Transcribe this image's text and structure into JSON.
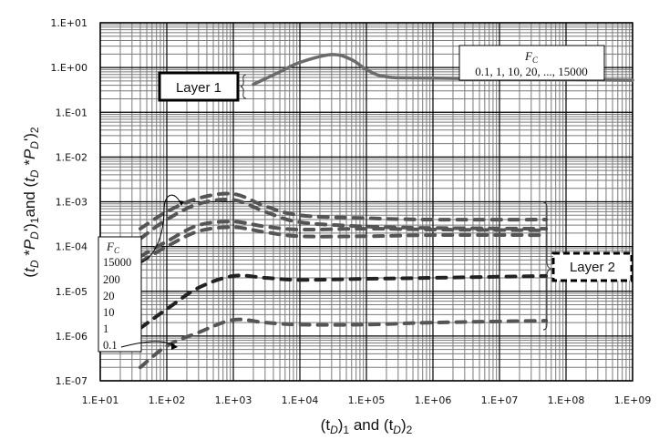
{
  "chart_data": {
    "type": "line",
    "title": "",
    "xlabel": "(t_D)_1 and (t_D)_2",
    "ylabel": "(t_D *P_D')_1 and (t_D *P_D')_2",
    "xscale": "log",
    "yscale": "log",
    "xlim": [
      10,
      1000000000
    ],
    "ylim": [
      1e-07,
      10
    ],
    "grid": true,
    "x_ticks": [
      "1.E+01",
      "1.E+02",
      "1.E+03",
      "1.E+04",
      "1.E+05",
      "1.E+06",
      "1.E+07",
      "1.E+08",
      "1.E+09"
    ],
    "y_ticks": [
      "1.E+01",
      "1.E+00",
      "1.E-01",
      "1.E-02",
      "1.E-03",
      "1.E-04",
      "1.E-05",
      "1.E-06",
      "1.E-07"
    ],
    "series": [
      {
        "name": "Layer 1 (F_C = 0.1, 1, 10, 20, ..., 15000)",
        "style": "solid",
        "color": "#6b6b6b",
        "x": [
          2000,
          5000,
          10000,
          30000,
          60000,
          100000,
          200000,
          1000000,
          1000000000
        ],
        "y": [
          0.42,
          0.8,
          1.3,
          1.95,
          1.5,
          0.9,
          0.62,
          0.58,
          0.52
        ]
      },
      {
        "name": "Layer 2 F_C=15000",
        "style": "dashed",
        "color": "#555555",
        "x": [
          40,
          100,
          300,
          1000,
          3000,
          10000,
          100000,
          1000000,
          50000000
        ],
        "y": [
          0.00025,
          0.0006,
          0.0012,
          0.0015,
          0.0008,
          0.0005,
          0.00043,
          0.0004,
          0.0004
        ]
      },
      {
        "name": "Layer 2 F_C=200",
        "style": "dashed",
        "color": "#555555",
        "x": [
          40,
          100,
          300,
          1000,
          3000,
          10000,
          100000,
          1000000,
          50000000
        ],
        "y": [
          0.00015,
          0.0004,
          0.0009,
          0.0011,
          0.0006,
          0.00035,
          0.00028,
          0.00026,
          0.00025
        ]
      },
      {
        "name": "Layer 2 F_C=20",
        "style": "dashed",
        "color": "#555555",
        "x": [
          40,
          100,
          300,
          1000,
          3000,
          10000,
          100000,
          1000000,
          50000000
        ],
        "y": [
          6e-05,
          0.00013,
          0.0003,
          0.00036,
          0.00028,
          0.00024,
          0.00025,
          0.00024,
          0.00023
        ]
      },
      {
        "name": "Layer 2 F_C=10",
        "style": "dashed",
        "color": "#555555",
        "x": [
          40,
          100,
          300,
          1000,
          3000,
          10000,
          100000,
          1000000,
          50000000
        ],
        "y": [
          4.5e-05,
          0.0001,
          0.00022,
          0.00027,
          0.00021,
          0.00017,
          0.00017,
          0.00018,
          0.00018
        ]
      },
      {
        "name": "Layer 2 F_C=1",
        "style": "dashed",
        "color": "#222222",
        "x": [
          40,
          100,
          300,
          1000,
          3000,
          10000,
          100000,
          1000000,
          50000000
        ],
        "y": [
          1.5e-06,
          4e-06,
          1.2e-05,
          2.2e-05,
          2e-05,
          1.8e-05,
          1.9e-05,
          2e-05,
          2.2e-05
        ]
      },
      {
        "name": "Layer 2 F_C=0.1",
        "style": "dashed",
        "color": "#555555",
        "x": [
          40,
          100,
          300,
          1000,
          3000,
          10000,
          100000,
          1000000,
          50000000
        ],
        "y": [
          2e-07,
          6e-07,
          1.2e-06,
          2.3e-06,
          2e-06,
          1.8e-06,
          1.8e-06,
          2e-06,
          2.2e-06
        ]
      }
    ],
    "annotations": [
      {
        "text": "Layer 1",
        "box": "solid-thick"
      },
      {
        "text": "Layer 2",
        "box": "dashed-thick"
      },
      {
        "text": "F_C 0.1, 1, 10, 20, ..., 15000",
        "box": "solid"
      },
      {
        "text": "F_C legend: 15000, 200, 20, 10, 1, 0.1",
        "box": "solid"
      }
    ]
  },
  "labels": {
    "layer1": "Layer 1",
    "layer2": "Layer 2",
    "fc_top_title": "F",
    "fc_top_sub": "C",
    "fc_top_values": "0.1, 1, 10, 20, ..., 15000",
    "fc_left_title": "F",
    "fc_left_sub": "C",
    "fc_left_values": [
      "15000",
      "200",
      "20",
      "10",
      "1",
      "0.1"
    ],
    "x_axis_label": {
      "p1": "(t",
      "sub1": "D",
      "p2": ")",
      "sub2": "1",
      "p3": " and (t",
      "sub3": "D",
      "p4": ")",
      "sub4": "2"
    },
    "y_axis_label": "(t_D *P_D')_1 and (t_D *P_D')_2"
  }
}
